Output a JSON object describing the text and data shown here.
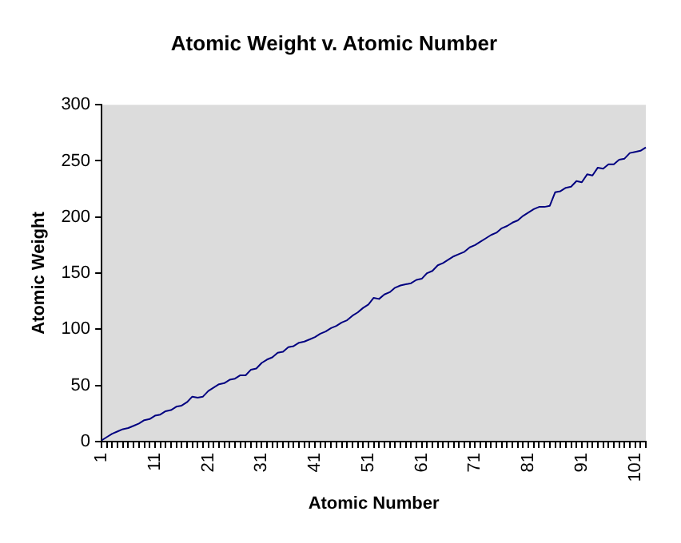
{
  "chart_data": {
    "type": "line",
    "title": "Atomic Weight v. Atomic Number",
    "xlabel": "Atomic Number",
    "ylabel": "Atomic Weight",
    "categories": [
      "1",
      null,
      null,
      null,
      null,
      null,
      null,
      null,
      null,
      null,
      "11",
      null,
      null,
      null,
      null,
      null,
      null,
      null,
      null,
      null,
      "21",
      null,
      null,
      null,
      null,
      null,
      null,
      null,
      null,
      null,
      "31",
      null,
      null,
      null,
      null,
      null,
      null,
      null,
      null,
      null,
      "41",
      null,
      null,
      null,
      null,
      null,
      null,
      null,
      null,
      null,
      "51",
      null,
      null,
      null,
      null,
      null,
      null,
      null,
      null,
      null,
      "61",
      null,
      null,
      null,
      null,
      null,
      null,
      null,
      null,
      null,
      "71",
      null,
      null,
      null,
      null,
      null,
      null,
      null,
      null,
      null,
      "81",
      null,
      null,
      null,
      null,
      null,
      null,
      null,
      null,
      null,
      "91",
      null,
      null,
      null,
      null,
      null,
      null,
      null,
      null,
      null,
      "101",
      null,
      null
    ],
    "series": [
      {
        "color": "#000080",
        "values": [
          1,
          4,
          7,
          9,
          11,
          12,
          14,
          16,
          19,
          20,
          23,
          24,
          27,
          28,
          31,
          32,
          35,
          40,
          39,
          40,
          45,
          48,
          51,
          52,
          55,
          56,
          59,
          59,
          64,
          65,
          70,
          73,
          75,
          79,
          80,
          84,
          85,
          88,
          89,
          91,
          93,
          96,
          98,
          101,
          103,
          106,
          108,
          112,
          115,
          119,
          122,
          128,
          127,
          131,
          133,
          137,
          139,
          140,
          141,
          144,
          145,
          150,
          152,
          157,
          159,
          162,
          165,
          167,
          169,
          173,
          175,
          178,
          181,
          184,
          186,
          190,
          192,
          195,
          197,
          201,
          204,
          207,
          209,
          209,
          210,
          222,
          223,
          226,
          227,
          232,
          231,
          238,
          237,
          244,
          243,
          247,
          247,
          251,
          252,
          257,
          258,
          259,
          262
        ]
      }
    ],
    "ylim": [
      0,
      300
    ],
    "yticks": [
      0,
      50,
      100,
      150,
      200,
      250,
      300
    ],
    "grid": false,
    "legend": false,
    "marker": "none",
    "line_style": "solid"
  }
}
